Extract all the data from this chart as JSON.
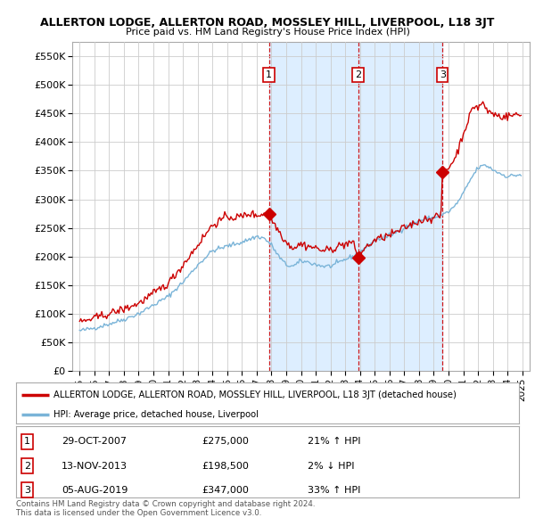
{
  "title": "ALLERTON LODGE, ALLERTON ROAD, MOSSLEY HILL, LIVERPOOL, L18 3JT",
  "subtitle": "Price paid vs. HM Land Registry's House Price Index (HPI)",
  "ylabel_ticks": [
    "£0",
    "£50K",
    "£100K",
    "£150K",
    "£200K",
    "£250K",
    "£300K",
    "£350K",
    "£400K",
    "£450K",
    "£500K",
    "£550K"
  ],
  "ylim": [
    0,
    575000
  ],
  "xlim_start": 1994.5,
  "xlim_end": 2025.5,
  "sale_dates": [
    2007.83,
    2013.87,
    2019.59
  ],
  "sale_prices": [
    275000,
    198500,
    347000
  ],
  "sale_labels": [
    "1",
    "2",
    "3"
  ],
  "hpi_color": "#7ab4d8",
  "price_color": "#cc0000",
  "shade_color": "#ddeeff",
  "dashed_color": "#cc0000",
  "bg_color": "#ffffff",
  "grid_color": "#cccccc",
  "legend_box_text1": "ALLERTON LODGE, ALLERTON ROAD, MOSSLEY HILL, LIVERPOOL, L18 3JT (detached house)",
  "legend_box_text2": "HPI: Average price, detached house, Liverpool",
  "table_rows": [
    {
      "num": "1",
      "date": "29-OCT-2007",
      "price": "£275,000",
      "change": "21% ↑ HPI"
    },
    {
      "num": "2",
      "date": "13-NOV-2013",
      "price": "£198,500",
      "change": "2% ↓ HPI"
    },
    {
      "num": "3",
      "date": "05-AUG-2019",
      "price": "£347,000",
      "change": "33% ↑ HPI"
    }
  ],
  "footnote1": "Contains HM Land Registry data © Crown copyright and database right 2024.",
  "footnote2": "This data is licensed under the Open Government Licence v3.0.",
  "xtick_years": [
    1995,
    1996,
    1997,
    1998,
    1999,
    2000,
    2001,
    2002,
    2003,
    2004,
    2005,
    2006,
    2007,
    2008,
    2009,
    2010,
    2011,
    2012,
    2013,
    2014,
    2015,
    2016,
    2017,
    2018,
    2019,
    2020,
    2021,
    2022,
    2023,
    2024,
    2025
  ]
}
